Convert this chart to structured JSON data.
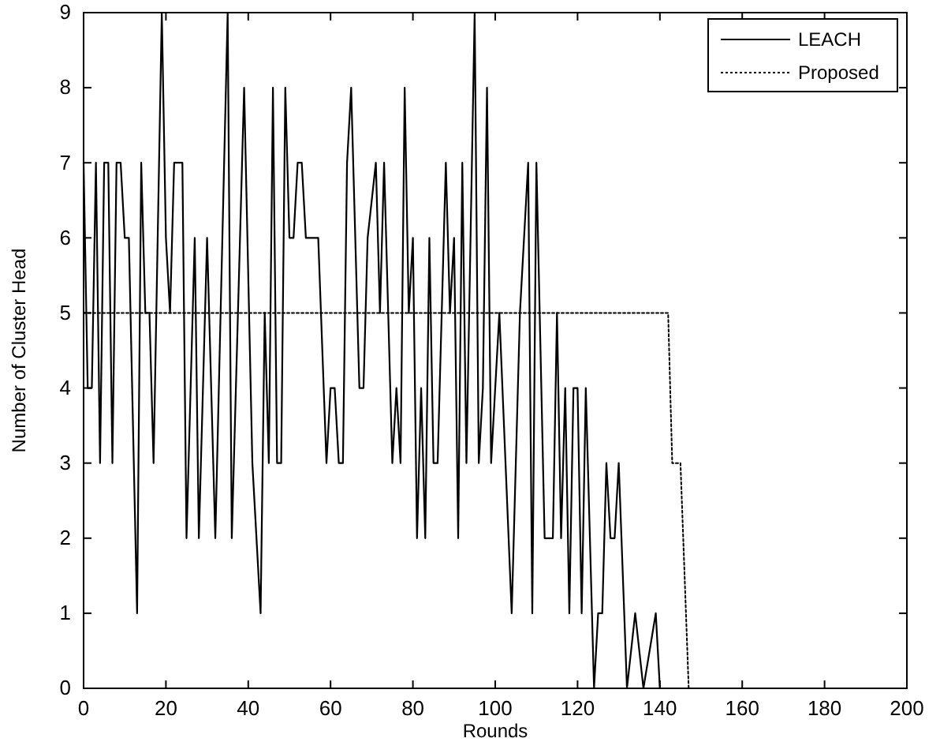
{
  "chart_data": {
    "type": "line",
    "xlabel": "Rounds",
    "ylabel": "Number of Cluster Head",
    "xlim": [
      0,
      200
    ],
    "ylim": [
      0,
      9
    ],
    "xticks": [
      0,
      20,
      40,
      60,
      80,
      100,
      120,
      140,
      160,
      180,
      200
    ],
    "yticks": [
      0,
      1,
      2,
      3,
      4,
      5,
      6,
      7,
      8,
      9
    ],
    "grid": false,
    "legend": "top right",
    "marker": "none",
    "series": [
      {
        "name": "LEACH",
        "color": "#000000",
        "line_style": "solid",
        "x": [
          0,
          1,
          2,
          3,
          4,
          5,
          6,
          7,
          8,
          9,
          10,
          11,
          13,
          14,
          15,
          16,
          17,
          19,
          20,
          21,
          22,
          23,
          24,
          25,
          27,
          28,
          30,
          32,
          35,
          36,
          39,
          41,
          43,
          44,
          45,
          46,
          47,
          48,
          49,
          50,
          51,
          52,
          53,
          54,
          57,
          59,
          60,
          61,
          62,
          63,
          64,
          65,
          67,
          68,
          69,
          71,
          72,
          73,
          75,
          76,
          77,
          78,
          79,
          80,
          81,
          82,
          83,
          84,
          85,
          86,
          88,
          89,
          90,
          91,
          92,
          93,
          95,
          96,
          97,
          98,
          99,
          101,
          104,
          106,
          108,
          109,
          110,
          112,
          114,
          115,
          116,
          117,
          118,
          119,
          120,
          121,
          122,
          124,
          125,
          126,
          127,
          128,
          129,
          130,
          132,
          134,
          136,
          139,
          140
        ],
        "values": [
          7,
          4,
          4,
          7,
          3,
          7,
          7,
          3,
          7,
          7,
          6,
          6,
          1,
          7,
          5,
          5,
          3,
          9,
          6,
          5,
          7,
          7,
          7,
          2,
          6,
          2,
          6,
          2,
          9,
          2,
          8,
          3,
          1,
          5,
          3,
          8,
          3,
          3,
          8,
          6,
          6,
          7,
          7,
          6,
          6,
          3,
          4,
          4,
          3,
          3,
          7,
          8,
          4,
          4,
          6,
          7,
          5,
          7,
          3,
          4,
          3,
          8,
          5,
          6,
          2,
          4,
          2,
          6,
          3,
          3,
          7,
          5,
          6,
          2,
          7,
          3,
          9,
          3,
          4,
          8,
          3,
          5,
          1,
          5,
          7,
          1,
          7,
          2,
          2,
          5,
          2,
          4,
          1,
          4,
          4,
          1,
          4,
          0,
          1,
          1,
          3,
          2,
          2,
          3,
          0,
          1,
          0,
          1,
          0
        ]
      },
      {
        "name": "Proposed",
        "color": "#000000",
        "line_style": "dotted",
        "x": [
          0,
          142,
          143,
          145,
          147
        ],
        "values": [
          5,
          5,
          3,
          3,
          0
        ]
      }
    ]
  }
}
